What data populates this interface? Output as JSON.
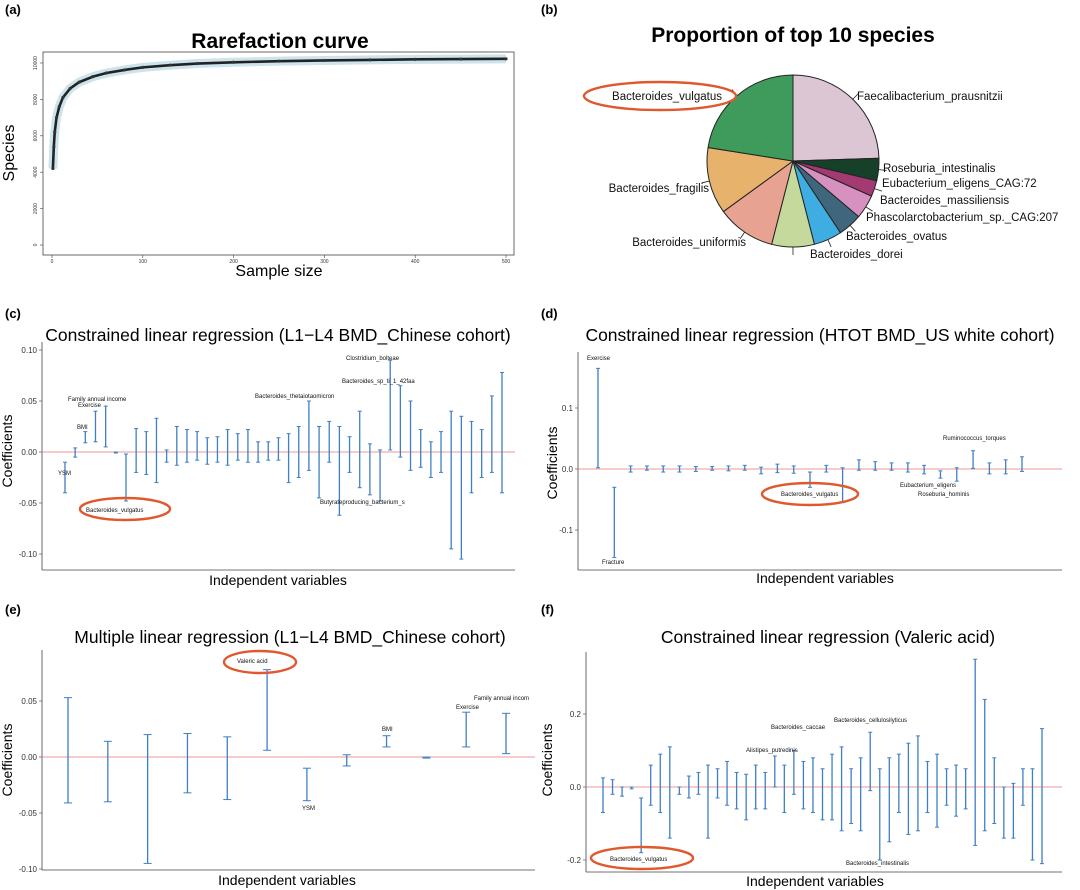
{
  "panel_labels": [
    "(a)",
    "(b)",
    "(c)",
    "(d)",
    "(e)",
    "(f)"
  ],
  "chart_data": [
    {
      "panel": "(a)",
      "type": "line",
      "title": "Rarefaction curve",
      "xlabel": "Sample size",
      "ylabel": "Species",
      "xlim": [
        0,
        500
      ],
      "ylim": [
        0,
        10500
      ],
      "xticks": [
        "0",
        "100",
        "200",
        "300",
        "400",
        "500"
      ],
      "yticks": [
        "0",
        "2000",
        "4000",
        "6000",
        "8000",
        "10000"
      ],
      "series": [
        {
          "x": [
            1,
            2,
            3,
            5,
            8,
            12,
            20,
            30,
            45,
            60,
            80,
            100,
            130,
            160,
            200,
            250,
            300,
            350,
            400,
            450,
            500
          ],
          "y": [
            4200,
            5400,
            6200,
            7000,
            7600,
            8100,
            8600,
            8950,
            9250,
            9450,
            9620,
            9760,
            9880,
            9970,
            10040,
            10100,
            10140,
            10170,
            10200,
            10215,
            10230
          ]
        }
      ]
    },
    {
      "panel": "(b)",
      "type": "pie",
      "title": "Proportion of top 10 species",
      "slices": [
        {
          "label": "Faecalibacterium_prausnitzii",
          "value": 24.5,
          "color": "#dcc6d3"
        },
        {
          "label": "Roseburia_intestinalis",
          "value": 4.2,
          "color": "#16402a"
        },
        {
          "label": "Eubacterium_eligens_CAG:72",
          "value": 3.0,
          "color": "#a33a72"
        },
        {
          "label": "Bacteroides_massiliensis",
          "value": 4.5,
          "color": "#d691c0"
        },
        {
          "label": "Phascolarctobacterium_sp._CAG:207",
          "value": 4.5,
          "color": "#3f667c"
        },
        {
          "label": "Bacteroides_ovatus",
          "value": 5.3,
          "color": "#3eaee2"
        },
        {
          "label": "Bacteroides_dorei",
          "value": 8.0,
          "color": "#c5d99c"
        },
        {
          "label": "Bacteroides_uniformis",
          "value": 11.0,
          "color": "#e8a292"
        },
        {
          "label": "Bacteroides_fragilis",
          "value": 12.5,
          "color": "#e6b26c"
        },
        {
          "label": "Bacteroides_vulgatus",
          "value": 22.5,
          "color": "#3f9b5c"
        }
      ],
      "highlight": "Bacteroides_vulgatus"
    },
    {
      "panel": "(c)",
      "type": "errorbar",
      "title": "Constrained linear regression (L1−L4 BMD_Chinese cohort)",
      "xlabel": "Independent variables",
      "ylabel": "Coefficients",
      "ylim": [
        -0.11,
        0.1
      ],
      "yticks": [
        "-0.10",
        "-0.05",
        "0.00",
        "0.05",
        "0.10"
      ],
      "bars": [
        [
          -0.04,
          -0.01
        ],
        [
          -0.005,
          0.004
        ],
        [
          0.009,
          0.02
        ],
        [
          0.01,
          0.04
        ],
        [
          0.005,
          0.045
        ],
        [
          -0.001,
          0.0
        ],
        [
          -0.048,
          -0.002
        ],
        [
          -0.02,
          0.023
        ],
        [
          -0.022,
          0.02
        ],
        [
          -0.03,
          0.033
        ],
        [
          -0.01,
          0.002
        ],
        [
          -0.013,
          0.025
        ],
        [
          -0.01,
          0.022
        ],
        [
          -0.008,
          0.02
        ],
        [
          -0.012,
          0.014
        ],
        [
          -0.01,
          0.015
        ],
        [
          -0.013,
          0.022
        ],
        [
          -0.008,
          0.018
        ],
        [
          -0.01,
          0.022
        ],
        [
          -0.01,
          0.01
        ],
        [
          -0.008,
          0.01
        ],
        [
          -0.008,
          0.014
        ],
        [
          -0.03,
          0.018
        ],
        [
          -0.025,
          0.025
        ],
        [
          -0.018,
          0.05
        ],
        [
          -0.045,
          0.025
        ],
        [
          -0.01,
          0.03
        ],
        [
          -0.062,
          0.025
        ],
        [
          -0.02,
          0.015
        ],
        [
          -0.035,
          0.04
        ],
        [
          -0.042,
          0.008
        ],
        [
          -0.048,
          0.002
        ],
        [
          0.002,
          0.09
        ],
        [
          -0.005,
          0.065
        ],
        [
          -0.018,
          0.05
        ],
        [
          -0.015,
          0.022
        ],
        [
          -0.025,
          0.01
        ],
        [
          -0.02,
          0.02
        ],
        [
          -0.095,
          0.04
        ],
        [
          -0.105,
          0.035
        ],
        [
          -0.04,
          0.03
        ],
        [
          -0.025,
          0.022
        ],
        [
          -0.02,
          0.055
        ],
        [
          -0.04,
          0.078
        ]
      ],
      "annotations": [
        "Clostridium_bolteae",
        "Bacteroides_sp_ti_1_42faa",
        "Family annual income",
        "Exercise",
        "BMI",
        "Bacteroides_thetaiotaomicron",
        "YSM",
        "Bacteroides_vulgatus",
        "Butyrateproducing_bacterium_s"
      ],
      "highlight": "Bacteroides_vulgatus"
    },
    {
      "panel": "(d)",
      "type": "errorbar",
      "title": "Constrained linear regression (HTOT BMD_US white cohort)",
      "xlabel": "Independent variables",
      "ylabel": "Coefficients",
      "ylim": [
        -0.17,
        0.17
      ],
      "yticks": [
        "-0.1",
        "0.0",
        "0.1"
      ],
      "bars": [
        [
          0.002,
          0.165
        ],
        [
          -0.145,
          -0.03
        ],
        [
          -0.005,
          0.005
        ],
        [
          -0.002,
          0.005
        ],
        [
          -0.005,
          0.005
        ],
        [
          -0.005,
          0.005
        ],
        [
          -0.004,
          0.004
        ],
        [
          -0.002,
          0.004
        ],
        [
          -0.003,
          0.005
        ],
        [
          -0.002,
          0.006
        ],
        [
          -0.008,
          0.003
        ],
        [
          -0.006,
          0.008
        ],
        [
          -0.007,
          0.005
        ],
        [
          -0.03,
          -0.005
        ],
        [
          -0.005,
          0.006
        ],
        [
          -0.055,
          0.002
        ],
        [
          -0.002,
          0.015
        ],
        [
          -0.002,
          0.012
        ],
        [
          -0.002,
          0.01
        ],
        [
          -0.005,
          0.01
        ],
        [
          -0.008,
          0.006
        ],
        [
          -0.015,
          -0.003
        ],
        [
          -0.02,
          0.002
        ],
        [
          0.001,
          0.03
        ],
        [
          -0.008,
          0.01
        ],
        [
          -0.008,
          0.015
        ],
        [
          -0.004,
          0.02
        ]
      ],
      "annotations": [
        "Exercise",
        "Fracture",
        "Bacteroides_vulgatus",
        "Ruminococcus_torques",
        "Eubacterium_eligens",
        "Roseburia_hominis"
      ],
      "highlight": "Bacteroides_vulgatus"
    },
    {
      "panel": "(e)",
      "type": "errorbar",
      "title": "Multiple linear regression (L1−L4 BMD_Chinese cohort)",
      "xlabel": "Independent variables",
      "ylabel": "Coefficients",
      "ylim": [
        -0.1,
        0.095
      ],
      "yticks": [
        "-0.10",
        "-0.05",
        "0.00",
        "0.05"
      ],
      "bars": [
        [
          -0.041,
          0.053
        ],
        [
          -0.04,
          0.014
        ],
        [
          -0.095,
          0.02
        ],
        [
          -0.032,
          0.021
        ],
        [
          -0.038,
          0.018
        ],
        [
          0.006,
          0.078
        ],
        [
          -0.039,
          -0.01
        ],
        [
          -0.008,
          0.002
        ],
        [
          0.009,
          0.019
        ],
        [
          -0.001,
          0.0
        ],
        [
          0.009,
          0.04
        ],
        [
          0.003,
          0.039
        ]
      ],
      "annotations": [
        "Valeric acid",
        "YSM",
        "BMI",
        "Exercise",
        "Family annual incom"
      ],
      "highlight": "Valeric acid"
    },
    {
      "panel": "(f)",
      "type": "errorbar",
      "title": "Constrained linear regression (Valeric acid)",
      "xlabel": "Independent variables",
      "ylabel": "Coefficients",
      "ylim": [
        -0.22,
        0.37
      ],
      "yticks": [
        "-0.2",
        "0.0",
        "0.2"
      ],
      "bars": [
        [
          -0.07,
          0.025
        ],
        [
          -0.02,
          0.02
        ],
        [
          -0.025,
          0.0
        ],
        [
          -0.005,
          0.0
        ],
        [
          -0.18,
          -0.03
        ],
        [
          -0.05,
          0.06
        ],
        [
          -0.07,
          0.09
        ],
        [
          -0.14,
          0.11
        ],
        [
          -0.02,
          0.0
        ],
        [
          -0.03,
          0.03
        ],
        [
          -0.02,
          0.04
        ],
        [
          -0.14,
          0.06
        ],
        [
          -0.03,
          0.05
        ],
        [
          -0.05,
          0.07
        ],
        [
          -0.06,
          0.04
        ],
        [
          -0.09,
          0.035
        ],
        [
          -0.06,
          0.06
        ],
        [
          -0.06,
          0.04
        ],
        [
          0.0,
          0.085
        ],
        [
          -0.07,
          0.06
        ],
        [
          -0.02,
          0.1
        ],
        [
          -0.06,
          0.07
        ],
        [
          -0.07,
          0.08
        ],
        [
          -0.09,
          0.05
        ],
        [
          -0.09,
          0.09
        ],
        [
          -0.12,
          0.11
        ],
        [
          -0.1,
          0.05
        ],
        [
          -0.12,
          0.08
        ],
        [
          -0.01,
          0.15
        ],
        [
          -0.2,
          0.05
        ],
        [
          -0.15,
          0.08
        ],
        [
          -0.07,
          0.09
        ],
        [
          -0.13,
          0.12
        ],
        [
          -0.12,
          0.14
        ],
        [
          -0.07,
          0.07
        ],
        [
          -0.11,
          0.09
        ],
        [
          -0.05,
          0.05
        ],
        [
          -0.08,
          0.06
        ],
        [
          -0.06,
          0.05
        ],
        [
          -0.16,
          0.35
        ],
        [
          -0.12,
          0.24
        ],
        [
          -0.1,
          0.08
        ],
        [
          -0.14,
          0.0
        ],
        [
          -0.14,
          0.01
        ],
        [
          -0.05,
          0.05
        ],
        [
          -0.2,
          0.05
        ],
        [
          -0.21,
          0.16
        ]
      ],
      "annotations": [
        "Bacteroides_caccae",
        "Bacteroides_cellulosilyticus",
        "Alistipes_putredinis",
        "Bacteroides_vulgatus",
        "Bacteroides_intestinalis"
      ],
      "highlight": "Bacteroides_vulgatus"
    }
  ],
  "colors": {
    "errorbar": "#3f7fc4",
    "zero_line": "#e8746f",
    "highlight_ellipse": "#e0582e",
    "rarefaction": "#222222",
    "rarefaction_band": "#6fb3c8"
  }
}
